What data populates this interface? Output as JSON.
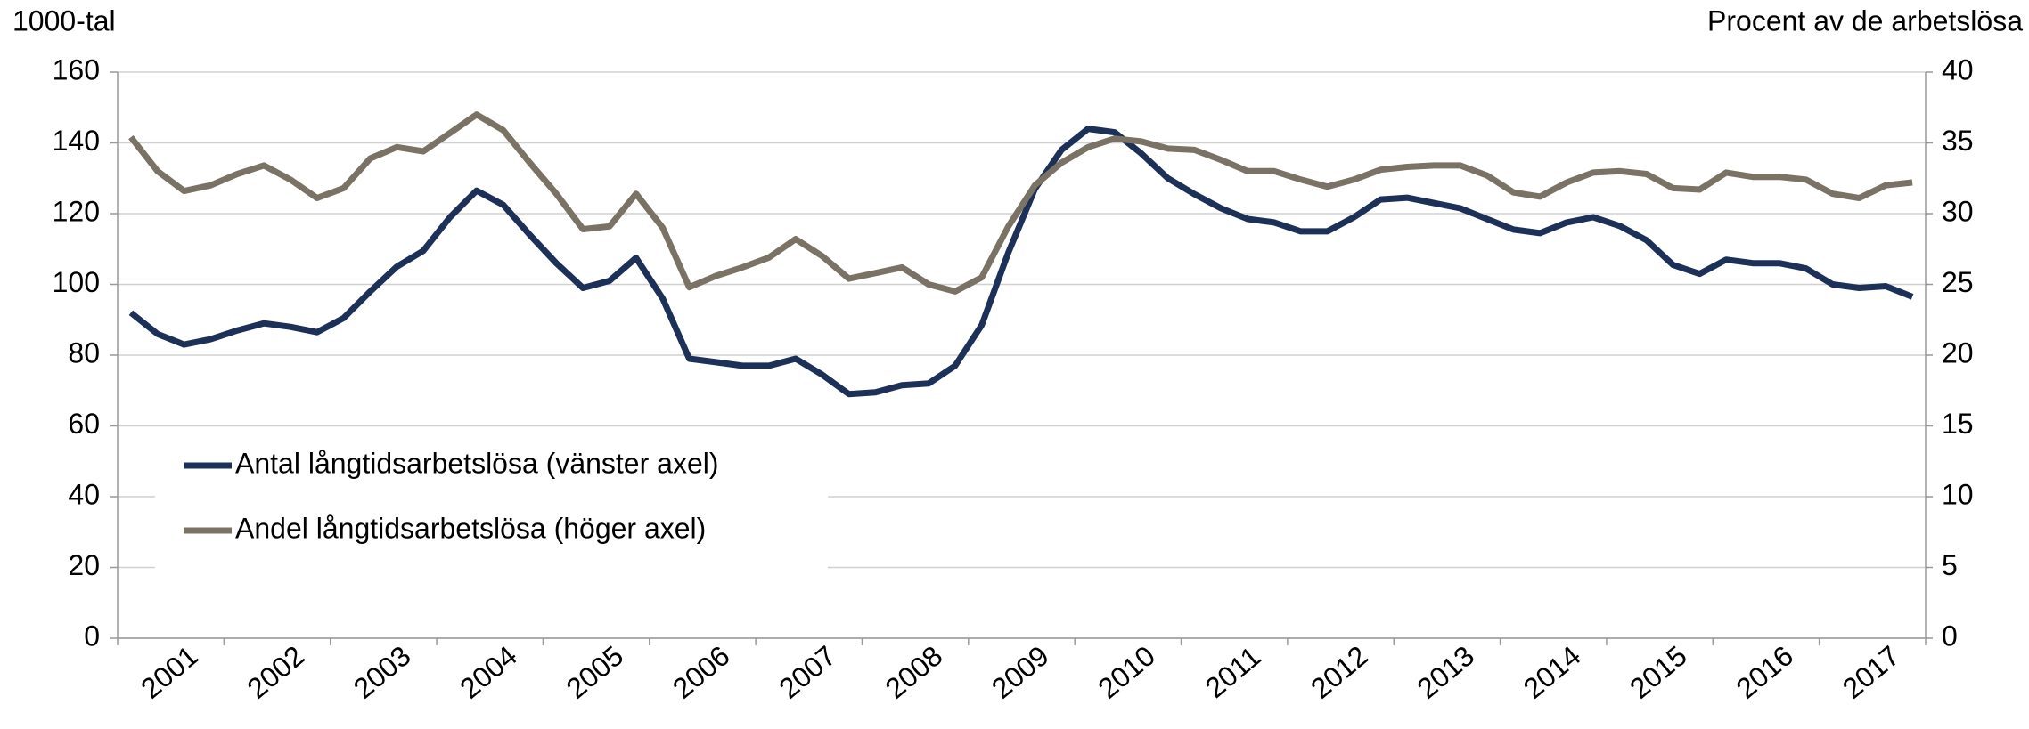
{
  "chart_data": {
    "type": "line",
    "ylabel": "1000-tal",
    "y2label": "Procent av de arbetslösa",
    "categories": [
      "2001",
      null,
      null,
      null,
      "2002",
      null,
      null,
      null,
      "2003",
      null,
      null,
      null,
      "2004",
      null,
      null,
      null,
      "2005",
      null,
      null,
      null,
      "2006",
      null,
      null,
      null,
      "2007",
      null,
      null,
      null,
      "2008",
      null,
      null,
      null,
      "2009",
      null,
      null,
      null,
      "2010",
      null,
      null,
      null,
      "2011",
      null,
      null,
      null,
      "2012",
      null,
      null,
      null,
      "2013",
      null,
      null,
      null,
      "2014",
      null,
      null,
      null,
      "2015",
      null,
      null,
      null,
      "2016",
      null,
      null,
      null,
      "2017",
      null,
      null,
      null
    ],
    "series": [
      {
        "name": "Antal långtidsarbetslösa (vänster axel)",
        "color": "#1c3058",
        "axis": "y",
        "values": [
          92,
          86,
          83,
          84.5,
          87,
          89,
          88,
          86.5,
          90.5,
          98,
          105,
          109.5,
          119,
          126.5,
          122.5,
          114,
          106,
          99,
          101,
          107.5,
          96,
          79,
          78,
          77,
          77,
          79,
          74.5,
          69,
          69.5,
          71.5,
          72,
          77,
          88.5,
          109,
          127,
          138,
          144,
          143,
          137,
          130,
          125.5,
          121.5,
          118.5,
          117.5,
          115,
          115,
          119,
          124,
          124.5,
          123,
          121.5,
          118.5,
          115.5,
          114.5,
          117.5,
          119,
          116.5,
          112.5,
          105.5,
          103,
          107,
          106,
          106,
          104.5,
          100,
          99,
          99.5,
          96.5
        ]
      },
      {
        "name": "Andel långtidsarbetslösa (höger axel)",
        "color": "#7a7264",
        "axis": "y2",
        "values": [
          35.4,
          33,
          31.6,
          32,
          32.8,
          33.4,
          32.4,
          31.1,
          31.8,
          33.9,
          34.7,
          34.4,
          35.7,
          37,
          35.9,
          33.6,
          31.4,
          28.9,
          29.1,
          31.4,
          29,
          24.8,
          25.6,
          26.2,
          26.9,
          28.2,
          27,
          25.4,
          25.8,
          26.2,
          25,
          24.5,
          25.5,
          29.1,
          32,
          33.6,
          34.7,
          35.3,
          35.1,
          34.6,
          34.5,
          33.8,
          33,
          33,
          32.4,
          31.9,
          32.4,
          33.1,
          33.3,
          33.4,
          33.4,
          32.7,
          31.5,
          31.2,
          32.2,
          32.9,
          33,
          32.8,
          31.8,
          31.7,
          32.9,
          32.6,
          32.6,
          32.4,
          31.4,
          31.1,
          32,
          32.2
        ]
      }
    ],
    "ylim": [
      0,
      160
    ],
    "yticks": [
      0,
      20,
      40,
      60,
      80,
      100,
      120,
      140,
      160
    ],
    "y2lim": [
      0,
      40
    ],
    "y2ticks": [
      0,
      5,
      10,
      15,
      20,
      25,
      30,
      35,
      40
    ],
    "grid": true,
    "legend": "lower left"
  }
}
